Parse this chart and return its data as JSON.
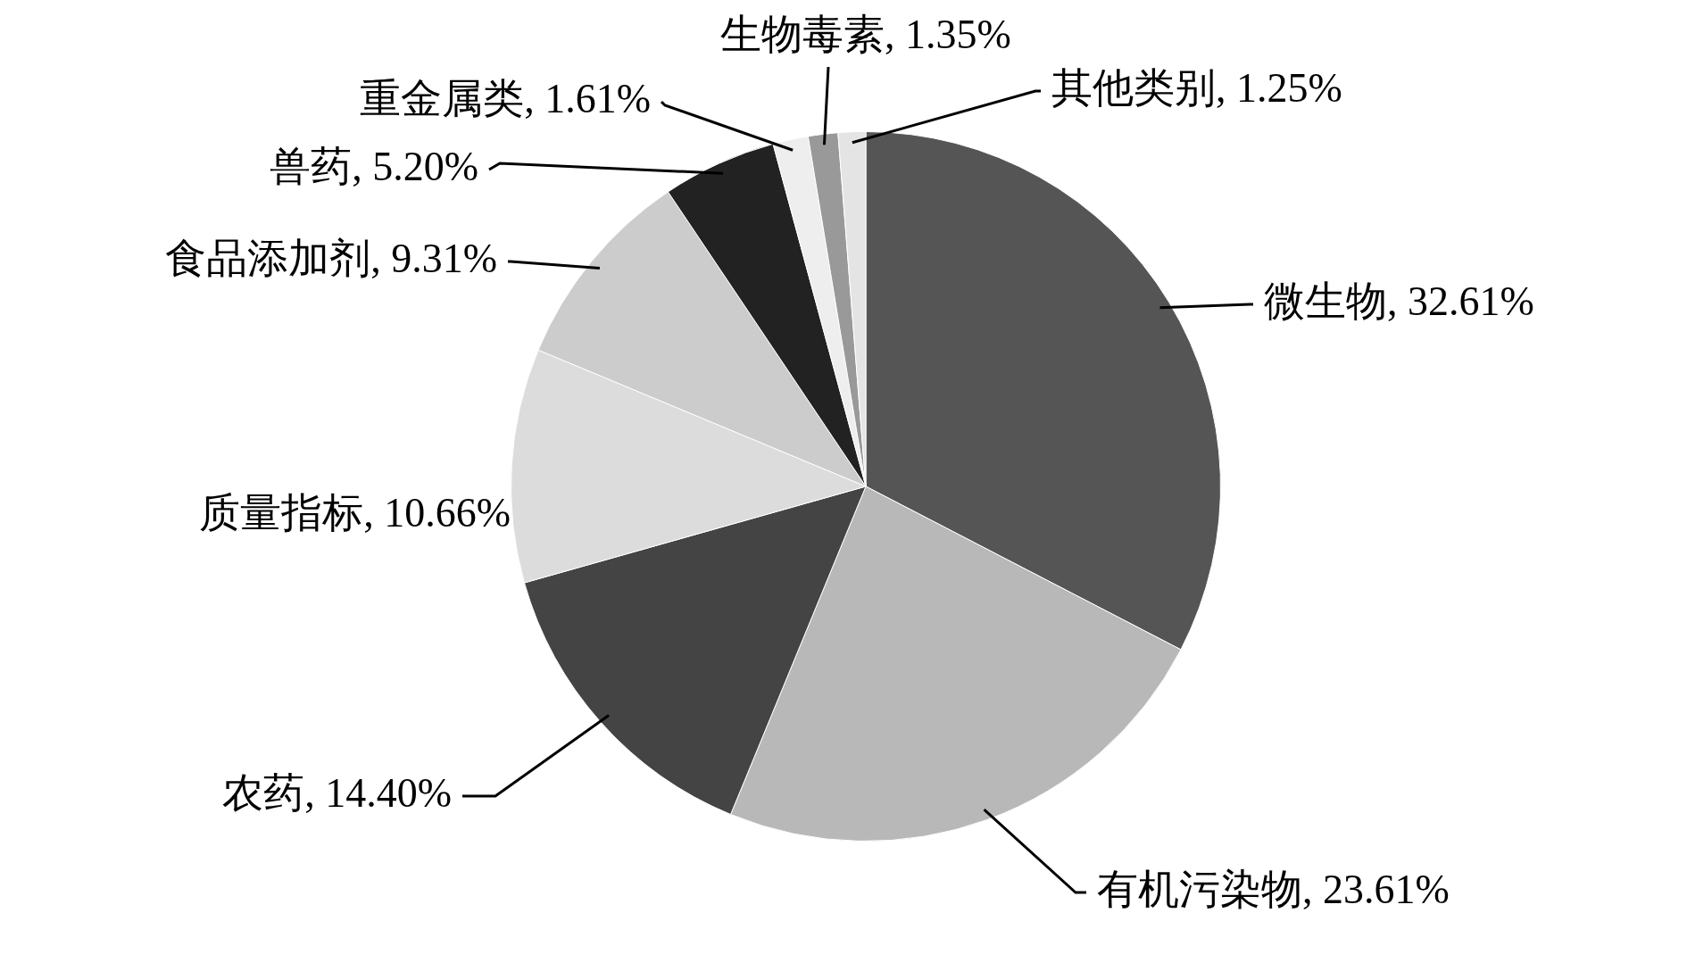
{
  "chart_data": {
    "type": "pie",
    "categories": [
      "微生物",
      "有机污染物",
      "农药",
      "质量指标",
      "食品添加剂",
      "兽药",
      "重金属类",
      "生物毒素",
      "其他类别"
    ],
    "values": [
      32.61,
      23.61,
      14.4,
      10.66,
      9.31,
      5.2,
      1.61,
      1.35,
      1.25
    ],
    "value_labels": [
      "32.61%",
      "23.61%",
      "14.40%",
      "10.66%",
      "9.31%",
      "5.20%",
      "1.61%",
      "1.35%",
      "1.25%"
    ],
    "colors": [
      "#555555",
      "#b8b8b8",
      "#444444",
      "#dcdcdc",
      "#cccccc",
      "#222222",
      "#eeeeee",
      "#999999",
      "#e4e4e4"
    ],
    "legend": false
  }
}
